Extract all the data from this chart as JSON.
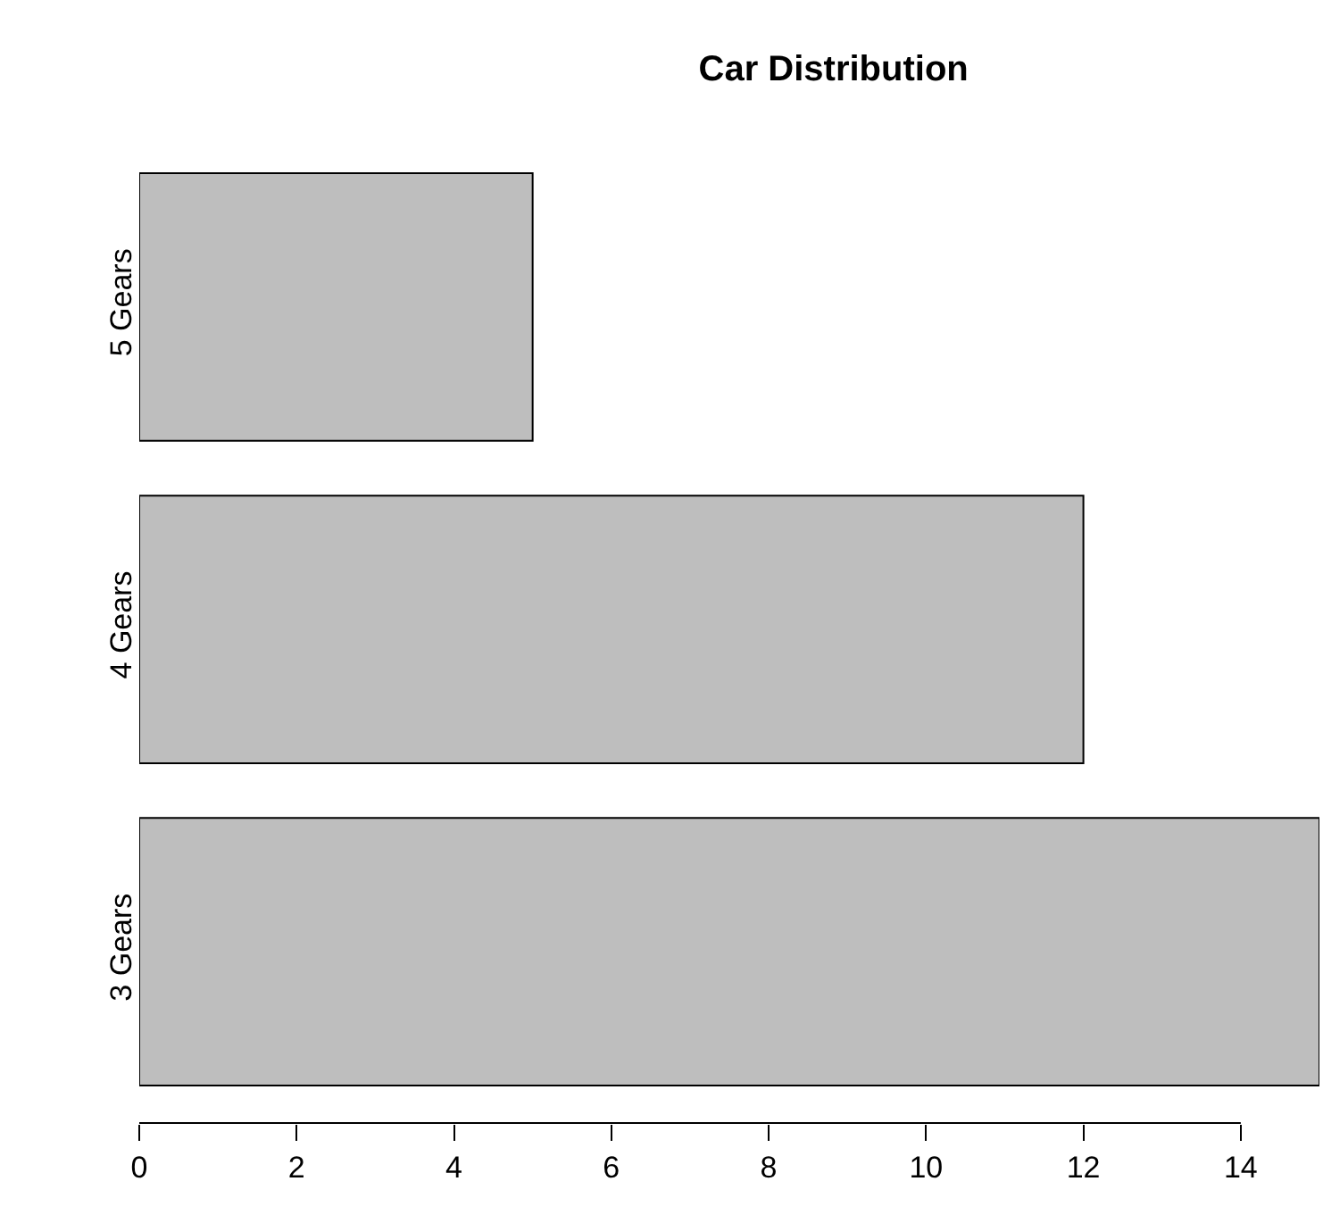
{
  "chart_data": {
    "type": "bar",
    "title": "Car Distribution",
    "orientation": "horizontal",
    "categories": [
      "5 Gears",
      "4 Gears",
      "3 Gears"
    ],
    "values": [
      5,
      12,
      15
    ],
    "color": "#bebebe",
    "xlim": [
      0,
      15
    ],
    "xticks": [
      0,
      2,
      4,
      6,
      8,
      10,
      12,
      14
    ],
    "grid": false
  }
}
